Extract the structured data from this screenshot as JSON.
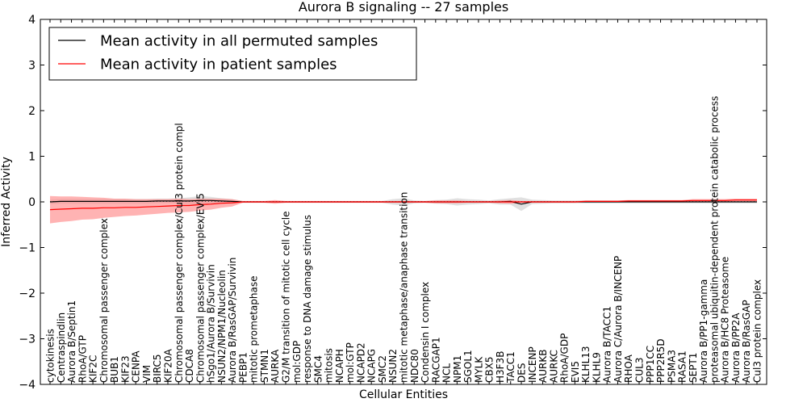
{
  "chart_data": {
    "type": "line",
    "title": "Aurora B signaling -- 27 samples",
    "xlabel": "Cellular Entities",
    "ylabel": "Inferred Activity",
    "ylim": [
      -4,
      4
    ],
    "yticks": [
      "4",
      "3",
      "2",
      "1",
      "0",
      "−1",
      "−2",
      "−3",
      "−4"
    ],
    "grid": false,
    "legend_position": "top-left",
    "categories": [
      "cytokinesis",
      "Centraspindlin",
      "Aurora B/Septin1",
      "RhoA/GTP",
      "KIF2C",
      "Chromosomal passenger complex",
      "BUB1",
      "KIF23",
      "CENPA",
      "VIM",
      "BIRC5",
      "KIF20A",
      "Chromosomal passenger complex/Cul3 protein compl",
      "CDCA8",
      "Chromosomal passenger complex/EVI5",
      "hSgo1/Aurora B/Survivin",
      "NSUN2/NPM1/Nucleolin",
      "Aurora B/RasGAP/Survivin",
      "PEBP1",
      "mitotic prometaphase",
      "STMN1",
      "AURKA",
      "G2/M transition of mitotic cell cycle",
      "mol:GDP",
      "response to DNA damage stimulus",
      "SMC4",
      "mitosis",
      "NCAPH",
      "mol:GTP",
      "NCAPD2",
      "NCAPG",
      "SMC2",
      "NSUN2",
      "mitotic metaphase/anaphase transition",
      "NDC80",
      "Condensin I complex",
      "RACGAP1",
      "NCL",
      "NPM1",
      "SGOL1",
      "MYLK",
      "CBX5",
      "H3F3B",
      "TACC1",
      "DES",
      "INCENP",
      "AURKB",
      "AURKC",
      "RhoA/GDP",
      "EVI5",
      "KLHL13",
      "KLHL9",
      "Aurora B/TACC1",
      "Aurora C/Aurora B/INCENP",
      "RHOA",
      "CUL3",
      "PPP1CC",
      "PPP2R5D",
      "PSMA3",
      "RASA1",
      "SEPT1",
      "Aurora B/PP1-gamma",
      "proteasomal ubiquitin-dependent protein catabolic process",
      "Aurora B/HC8 Proteasome",
      "Aurora B/PP2A",
      "Aurora B/RasGAP",
      "Cul3 protein complex"
    ],
    "series": [
      {
        "name": "Mean activity in all permuted samples",
        "color": "#000000",
        "band_color": "#bbbbbb",
        "values": [
          0.0,
          0.01,
          0.01,
          0.01,
          0.01,
          0.01,
          0.01,
          0.01,
          0.01,
          0.01,
          0.02,
          0.02,
          0.02,
          0.02,
          0.03,
          0.03,
          0.02,
          0.01,
          0.0,
          0.0,
          0.0,
          0.0,
          0.0,
          0.0,
          0.0,
          0.0,
          0.0,
          0.0,
          0.0,
          0.0,
          0.0,
          0.0,
          0.0,
          0.0,
          0.0,
          0.0,
          0.0,
          0.0,
          0.0,
          0.0,
          0.0,
          0.0,
          0.0,
          0.01,
          -0.05,
          0.0,
          0.0,
          0.0,
          0.0,
          0.0,
          0.0,
          0.0,
          0.0,
          0.0,
          0.0,
          0.0,
          0.0,
          0.0,
          0.0,
          0.0,
          0.0,
          0.0,
          0.0,
          0.0,
          0.0,
          0.0,
          0.0
        ],
        "band": [
          0.05,
          0.05,
          0.05,
          0.05,
          0.05,
          0.05,
          0.05,
          0.05,
          0.05,
          0.05,
          0.05,
          0.05,
          0.06,
          0.08,
          0.1,
          0.08,
          0.06,
          0.05,
          0.02,
          0.02,
          0.02,
          0.02,
          0.02,
          0.02,
          0.02,
          0.02,
          0.02,
          0.02,
          0.02,
          0.02,
          0.02,
          0.02,
          0.06,
          0.08,
          0.03,
          0.02,
          0.04,
          0.05,
          0.08,
          0.06,
          0.05,
          0.03,
          0.06,
          0.07,
          0.15,
          0.05,
          0.04,
          0.03,
          0.03,
          0.03,
          0.03,
          0.03,
          0.03,
          0.03,
          0.03,
          0.03,
          0.03,
          0.03,
          0.03,
          0.03,
          0.03,
          0.03,
          0.03,
          0.03,
          0.03,
          0.03,
          0.03
        ]
      },
      {
        "name": "Mean activity in patient samples",
        "color": "#ff0000",
        "band_color": "#ff8080",
        "values": [
          -0.17,
          -0.16,
          -0.15,
          -0.14,
          -0.14,
          -0.13,
          -0.13,
          -0.12,
          -0.12,
          -0.11,
          -0.1,
          -0.09,
          -0.08,
          -0.08,
          -0.06,
          -0.05,
          -0.03,
          -0.02,
          0.0,
          0.0,
          0.0,
          0.0,
          0.0,
          0.0,
          0.0,
          0.0,
          0.0,
          0.0,
          0.0,
          0.0,
          0.0,
          0.0,
          0.0,
          0.0,
          0.0,
          0.0,
          0.0,
          0.0,
          0.0,
          0.0,
          0.0,
          0.0,
          0.0,
          0.0,
          0.0,
          0.0,
          0.0,
          0.0,
          0.0,
          0.0,
          0.01,
          0.01,
          0.01,
          0.01,
          0.02,
          0.02,
          0.02,
          0.02,
          0.02,
          0.02,
          0.03,
          0.03,
          0.03,
          0.03,
          0.04,
          0.04,
          0.04
        ],
        "band": [
          0.3,
          0.28,
          0.27,
          0.25,
          0.24,
          0.22,
          0.2,
          0.19,
          0.18,
          0.17,
          0.16,
          0.15,
          0.15,
          0.14,
          0.13,
          0.12,
          0.1,
          0.08,
          0.02,
          0.02,
          0.02,
          0.04,
          0.02,
          0.02,
          0.02,
          0.02,
          0.02,
          0.02,
          0.02,
          0.02,
          0.02,
          0.02,
          0.02,
          0.02,
          0.02,
          0.02,
          0.03,
          0.03,
          0.03,
          0.02,
          0.02,
          0.02,
          0.03,
          0.04,
          0.02,
          0.02,
          0.02,
          0.02,
          0.02,
          0.02,
          0.02,
          0.02,
          0.02,
          0.02,
          0.02,
          0.02,
          0.02,
          0.02,
          0.02,
          0.02,
          0.03,
          0.03,
          0.03,
          0.03,
          0.03,
          0.03,
          0.03
        ]
      }
    ]
  }
}
